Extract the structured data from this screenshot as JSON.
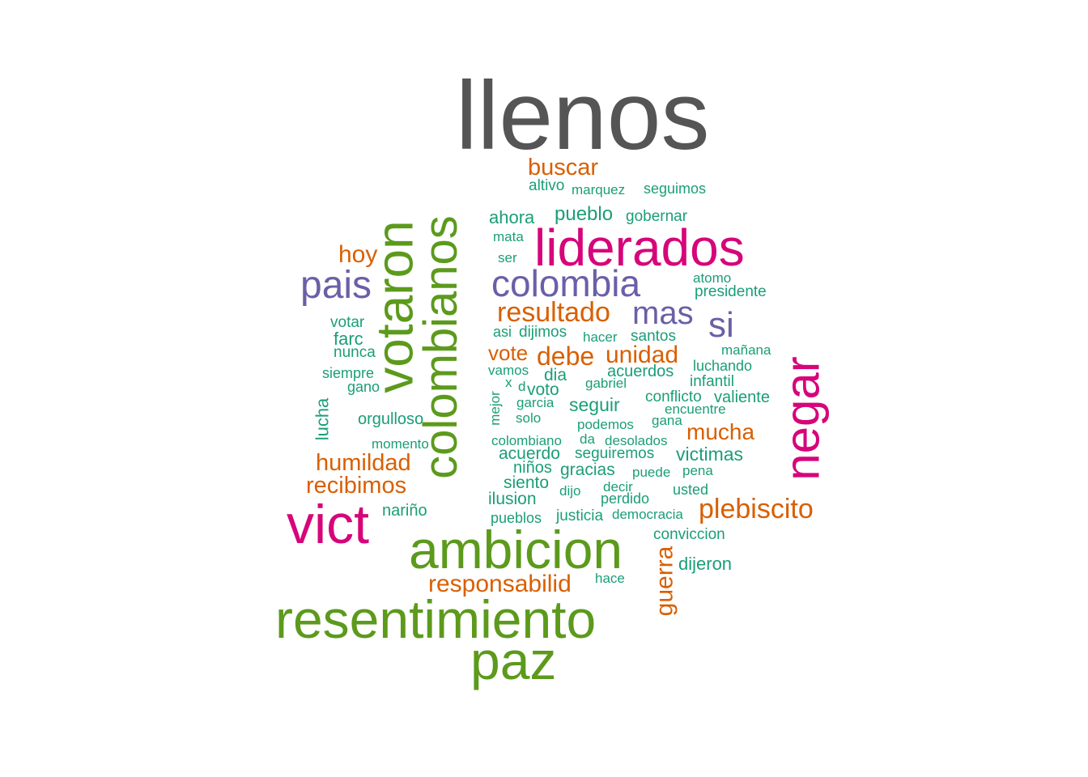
{
  "palette": {
    "teal": "#1b9e77",
    "orange": "#d95f02",
    "purple": "#6a5fa8",
    "magenta": "#d6057a",
    "green": "#5c9a1c",
    "gray": "#555555"
  },
  "words": [
    {
      "text": "llenos",
      "color": "gray"
    },
    {
      "text": "buscar",
      "color": "orange"
    },
    {
      "text": "altivo",
      "color": "teal"
    },
    {
      "text": "marquez",
      "color": "teal"
    },
    {
      "text": "seguimos",
      "color": "teal"
    },
    {
      "text": "ahora",
      "color": "teal"
    },
    {
      "text": "pueblo",
      "color": "teal"
    },
    {
      "text": "gobernar",
      "color": "teal"
    },
    {
      "text": "mata",
      "color": "teal"
    },
    {
      "text": "liderados",
      "color": "magenta"
    },
    {
      "text": "ser",
      "color": "teal"
    },
    {
      "text": "hoy",
      "color": "orange"
    },
    {
      "text": "pais",
      "color": "purple"
    },
    {
      "text": "colombia",
      "color": "purple"
    },
    {
      "text": "atomo",
      "color": "teal"
    },
    {
      "text": "presidente",
      "color": "teal"
    },
    {
      "text": "resultado",
      "color": "orange"
    },
    {
      "text": "mas",
      "color": "purple"
    },
    {
      "text": "si",
      "color": "purple"
    },
    {
      "text": "votar",
      "color": "teal"
    },
    {
      "text": "asi",
      "color": "teal"
    },
    {
      "text": "dijimos",
      "color": "teal"
    },
    {
      "text": "hacer",
      "color": "teal"
    },
    {
      "text": "santos",
      "color": "teal"
    },
    {
      "text": "farc",
      "color": "teal"
    },
    {
      "text": "nunca",
      "color": "teal"
    },
    {
      "text": "vote",
      "color": "orange"
    },
    {
      "text": "debe",
      "color": "orange"
    },
    {
      "text": "unidad",
      "color": "orange"
    },
    {
      "text": "mañana",
      "color": "teal"
    },
    {
      "text": "luchando",
      "color": "teal"
    },
    {
      "text": "siempre",
      "color": "teal"
    },
    {
      "text": "vamos",
      "color": "teal"
    },
    {
      "text": "dia",
      "color": "teal"
    },
    {
      "text": "acuerdos",
      "color": "teal"
    },
    {
      "text": "gano",
      "color": "teal"
    },
    {
      "text": "x",
      "color": "teal"
    },
    {
      "text": "d",
      "color": "teal"
    },
    {
      "text": "voto",
      "color": "teal"
    },
    {
      "text": "gabriel",
      "color": "teal"
    },
    {
      "text": "infantil",
      "color": "teal"
    },
    {
      "text": "conflicto",
      "color": "teal"
    },
    {
      "text": "valiente",
      "color": "teal"
    },
    {
      "text": "garcia",
      "color": "teal"
    },
    {
      "text": "seguir",
      "color": "teal"
    },
    {
      "text": "encuentre",
      "color": "teal"
    },
    {
      "text": "orgulloso",
      "color": "teal"
    },
    {
      "text": "solo",
      "color": "teal"
    },
    {
      "text": "podemos",
      "color": "teal"
    },
    {
      "text": "gana",
      "color": "teal"
    },
    {
      "text": "mucha",
      "color": "orange"
    },
    {
      "text": "momento",
      "color": "teal"
    },
    {
      "text": "colombiano",
      "color": "teal"
    },
    {
      "text": "da",
      "color": "teal"
    },
    {
      "text": "desolados",
      "color": "teal"
    },
    {
      "text": "acuerdo",
      "color": "teal"
    },
    {
      "text": "seguiremos",
      "color": "teal"
    },
    {
      "text": "victimas",
      "color": "teal"
    },
    {
      "text": "humildad",
      "color": "orange"
    },
    {
      "text": "niños",
      "color": "teal"
    },
    {
      "text": "gracias",
      "color": "teal"
    },
    {
      "text": "puede",
      "color": "teal"
    },
    {
      "text": "pena",
      "color": "teal"
    },
    {
      "text": "recibimos",
      "color": "orange"
    },
    {
      "text": "siento",
      "color": "teal"
    },
    {
      "text": "dijo",
      "color": "teal"
    },
    {
      "text": "decir",
      "color": "teal"
    },
    {
      "text": "usted",
      "color": "teal"
    },
    {
      "text": "ilusion",
      "color": "teal"
    },
    {
      "text": "perdido",
      "color": "teal"
    },
    {
      "text": "plebiscito",
      "color": "orange"
    },
    {
      "text": "nariño",
      "color": "teal"
    },
    {
      "text": "pueblos",
      "color": "teal"
    },
    {
      "text": "justicia",
      "color": "teal"
    },
    {
      "text": "democracia",
      "color": "teal"
    },
    {
      "text": "vict",
      "color": "magenta"
    },
    {
      "text": "conviccion",
      "color": "teal"
    },
    {
      "text": "ambicion",
      "color": "green"
    },
    {
      "text": "dijeron",
      "color": "teal"
    },
    {
      "text": "hace",
      "color": "teal"
    },
    {
      "text": "responsabilid",
      "color": "orange"
    },
    {
      "text": "resentimiento",
      "color": "green"
    },
    {
      "text": "paz",
      "color": "green"
    },
    {
      "text": "votaron",
      "color": "green"
    },
    {
      "text": "colombianos",
      "color": "green"
    },
    {
      "text": "negar",
      "color": "magenta"
    },
    {
      "text": "lucha",
      "color": "teal"
    },
    {
      "text": "mejor",
      "color": "teal"
    },
    {
      "text": "guerra",
      "color": "orange"
    }
  ]
}
